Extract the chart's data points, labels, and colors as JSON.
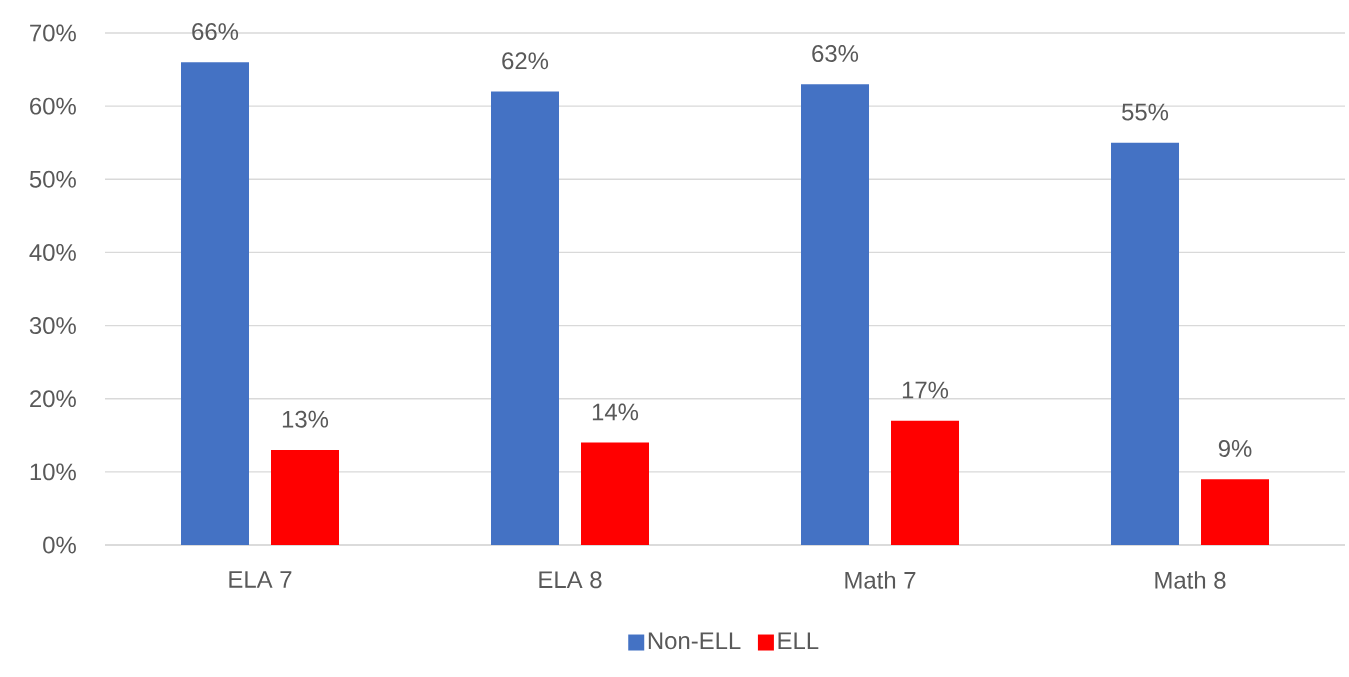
{
  "chart_data": {
    "type": "bar",
    "categories": [
      "ELA 7",
      "ELA 8",
      "Math 7",
      "Math 8"
    ],
    "series": [
      {
        "name": "Non-ELL",
        "color": "#4472c4",
        "values": [
          66,
          62,
          63,
          55
        ],
        "value_labels": [
          "66%",
          "62%",
          "63%",
          "55%"
        ]
      },
      {
        "name": "ELL",
        "color": "#ff0000",
        "values": [
          13,
          14,
          17,
          9
        ],
        "value_labels": [
          "13%",
          "14%",
          "17%",
          "9%"
        ]
      }
    ],
    "ylim": [
      0,
      70
    ],
    "yticks": [
      {
        "value": 0,
        "label": "0%"
      },
      {
        "value": 10,
        "label": "10%"
      },
      {
        "value": 20,
        "label": "20%"
      },
      {
        "value": 30,
        "label": "30%"
      },
      {
        "value": 40,
        "label": "40%"
      },
      {
        "value": 50,
        "label": "50%"
      },
      {
        "value": 60,
        "label": "60%"
      },
      {
        "value": 70,
        "label": "70%"
      }
    ],
    "grid": "y",
    "legend": "bottom"
  }
}
